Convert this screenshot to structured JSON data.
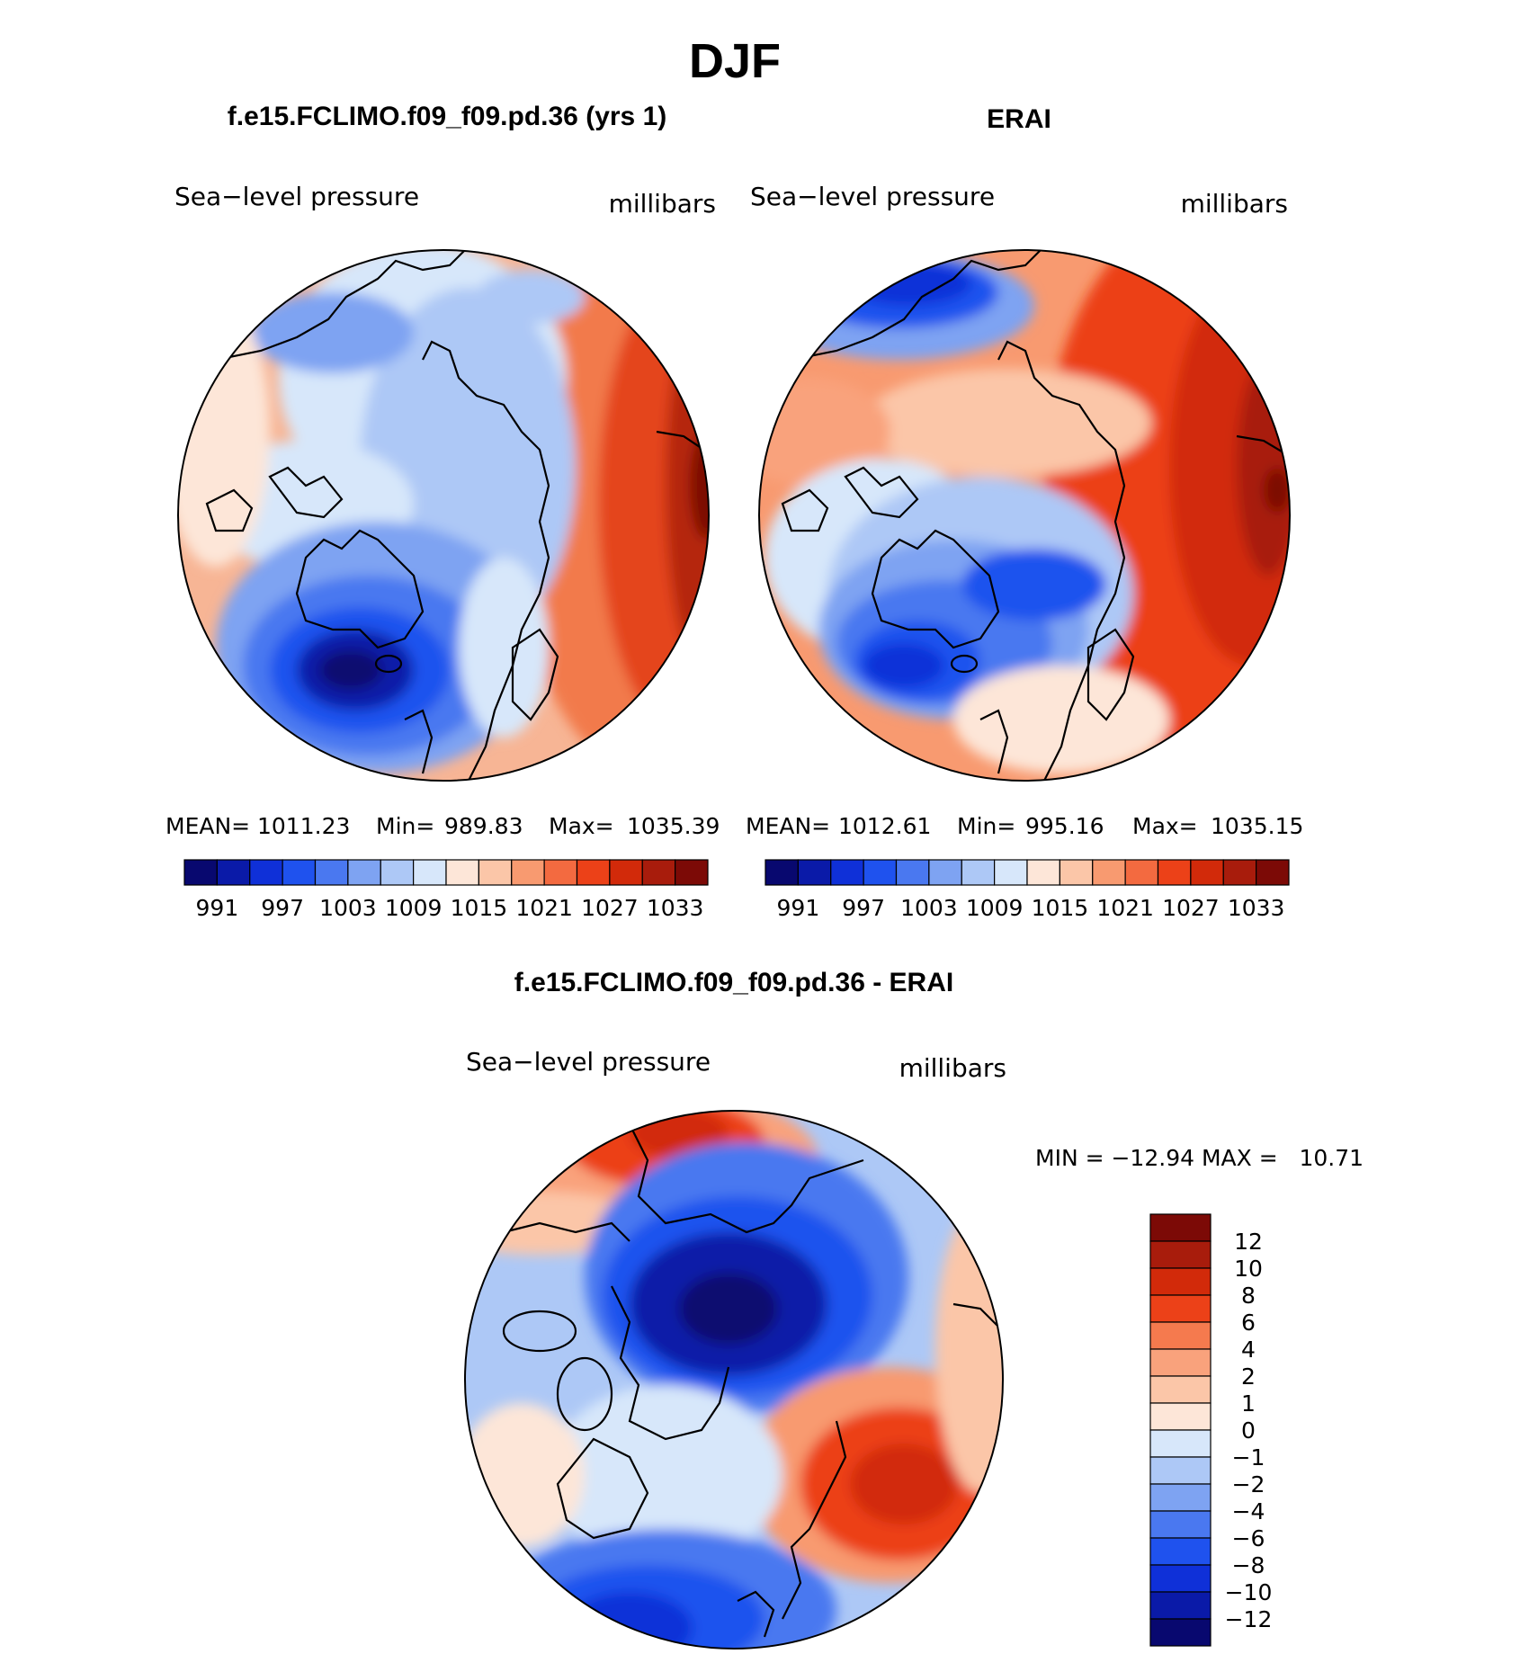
{
  "figure": {
    "season": "DJF"
  },
  "panels": [
    {
      "heading": "f.e15.FCLIMO.f09_f09.pd.36 (yrs 1)",
      "field": "Sea−level pressure",
      "units": "millibars",
      "stats": {
        "mean_label": "MEAN=",
        "mean": "1011.23",
        "min_label": "Min=",
        "min": "989.83",
        "max_label": "Max=",
        "max": "1035.39"
      }
    },
    {
      "heading": "ERAI",
      "field": "Sea−level pressure",
      "units": "millibars",
      "stats": {
        "mean_label": "MEAN=",
        "mean": "1012.61",
        "min_label": "Min=",
        "min": "995.16",
        "max_label": "Max=",
        "max": "1035.15"
      }
    }
  ],
  "colorbar_top": {
    "colors": [
      "#08086f",
      "#0a1aa8",
      "#0f30d8",
      "#1f52ee",
      "#4a78f0",
      "#7ea3f2",
      "#adc8f6",
      "#d7e7fa",
      "#fde6d8",
      "#fbc6a8",
      "#f89a70",
      "#f36a40",
      "#ec4118",
      "#d22a0a",
      "#a81c0c",
      "#7c0a06"
    ],
    "labels": [
      "991",
      "997",
      "1003",
      "1009",
      "1015",
      "1021",
      "1027",
      "1033"
    ]
  },
  "diff_panel": {
    "heading": "f.e15.FCLIMO.f09_f09.pd.36 - ERAI",
    "field": "Sea−level pressure",
    "units": "millibars",
    "minmax": "MIN = −12.94 MAX =   10.71"
  },
  "colorbar_diff": {
    "colors": [
      "#7c0a06",
      "#a81c0c",
      "#d22a0a",
      "#ec4118",
      "#f57a4e",
      "#f9a27c",
      "#fbc6a8",
      "#fde6d8",
      "#d7e7fa",
      "#adc8f6",
      "#7ea3f2",
      "#4a78f0",
      "#1f52ee",
      "#0f30d8",
      "#0a1aa8",
      "#08086f"
    ],
    "labels": [
      "12",
      "10",
      "8",
      "6",
      "4",
      "2",
      "1",
      "0",
      "−1",
      "−2",
      "−4",
      "−6",
      "−8",
      "−10",
      "−12"
    ]
  }
}
